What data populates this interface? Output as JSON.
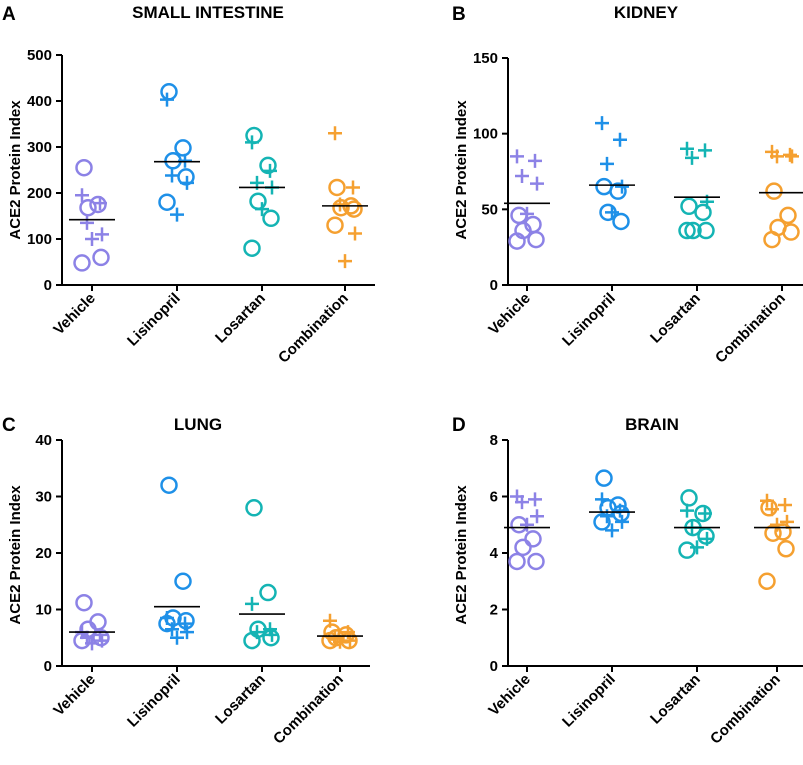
{
  "figure": {
    "panels": [
      {
        "letter": "A",
        "title": "SMALL INTESTINE",
        "ylabel": "ACE2 Protein Index",
        "yticks": [
          "0",
          "100",
          "200",
          "300",
          "400",
          "500"
        ]
      },
      {
        "letter": "B",
        "title": "KIDNEY",
        "ylabel": "ACE2 Protein Index",
        "yticks": [
          "0",
          "50",
          "100",
          "150"
        ]
      },
      {
        "letter": "C",
        "title": "LUNG",
        "ylabel": "ACE2 Protein Index",
        "yticks": [
          "0",
          "10",
          "20",
          "30",
          "40"
        ]
      },
      {
        "letter": "D",
        "title": "BRAIN",
        "ylabel": "ACE2 Protein Index",
        "yticks": [
          "0",
          "2",
          "4",
          "6",
          "8"
        ]
      }
    ],
    "categories": [
      "Vehicle",
      "Lisinopril",
      "Losartan",
      "Combination"
    ]
  },
  "chart_data": [
    {
      "type": "scatter",
      "title": "SMALL INTESTINE",
      "ylabel": "ACE2 Protein Index",
      "ylim": [
        0,
        500
      ],
      "categories": [
        "Vehicle",
        "Lisinopril",
        "Losartan",
        "Combination"
      ],
      "colors": [
        "#8c82e6",
        "#1e90e8",
        "#14b4b4",
        "#f5a030"
      ],
      "means": [
        142,
        268,
        212,
        172
      ],
      "groups": [
        {
          "circles": [
            255,
            175,
            168,
            60,
            48
          ],
          "plus": [
            195,
            178,
            135,
            110,
            100
          ]
        },
        {
          "circles": [
            420,
            298,
            270,
            235,
            180
          ],
          "plus": [
            403,
            270,
            238,
            222,
            153
          ]
        },
        {
          "circles": [
            325,
            260,
            182,
            145,
            80
          ],
          "plus": [
            310,
            248,
            222,
            212,
            165
          ]
        },
        {
          "circles": [
            212,
            172,
            168,
            165,
            130
          ],
          "plus": [
            330,
            212,
            175,
            112,
            52
          ]
        }
      ]
    },
    {
      "type": "scatter",
      "title": "KIDNEY",
      "ylabel": "ACE2 Protein Index",
      "ylim": [
        0,
        150
      ],
      "categories": [
        "Vehicle",
        "Lisinopril",
        "Losartan",
        "Combination"
      ],
      "colors": [
        "#8c82e6",
        "#1e90e8",
        "#14b4b4",
        "#f5a030"
      ],
      "means": [
        54,
        66,
        58,
        61
      ],
      "groups": [
        {
          "circles": [
            46,
            40,
            36,
            30,
            29
          ],
          "plus": [
            85,
            82,
            72,
            67,
            47
          ]
        },
        {
          "circles": [
            65,
            62,
            48,
            42
          ],
          "plus": [
            107,
            96,
            80,
            65,
            48
          ]
        },
        {
          "circles": [
            52,
            48,
            36,
            36,
            36
          ],
          "plus": [
            90,
            89,
            84,
            55
          ]
        },
        {
          "circles": [
            62,
            46,
            38,
            35,
            30
          ],
          "plus": [
            88,
            86,
            85,
            85
          ]
        }
      ]
    },
    {
      "type": "scatter",
      "title": "LUNG",
      "ylabel": "ACE2 Protein Index",
      "ylim": [
        0,
        40
      ],
      "categories": [
        "Vehicle",
        "Lisinopril",
        "Losartan",
        "Combination"
      ],
      "colors": [
        "#8c82e6",
        "#1e90e8",
        "#14b4b4",
        "#f5a030"
      ],
      "means": [
        6,
        10.5,
        9.2,
        5.3
      ],
      "groups": [
        {
          "circles": [
            11.2,
            7.8,
            6.5,
            5,
            4.5
          ],
          "plus": [
            6,
            5.5,
            5,
            4.5,
            4
          ]
        },
        {
          "circles": [
            32,
            15,
            8.5,
            8,
            7.5
          ],
          "plus": [
            8.5,
            7.5,
            6.5,
            6,
            5
          ]
        },
        {
          "circles": [
            28,
            13,
            6.5,
            5,
            4.5
          ],
          "plus": [
            11,
            6.5,
            6,
            5.5
          ]
        },
        {
          "circles": [
            6,
            5.5,
            5,
            4.5,
            4.5
          ],
          "plus": [
            8,
            6,
            5,
            4.5,
            4.3
          ]
        }
      ]
    },
    {
      "type": "scatter",
      "title": "BRAIN",
      "ylabel": "ACE2 Protein Index",
      "ylim": [
        0,
        8
      ],
      "categories": [
        "Vehicle",
        "Lisinopril",
        "Losartan",
        "Combination"
      ],
      "colors": [
        "#8c82e6",
        "#1e90e8",
        "#14b4b4",
        "#f5a030"
      ],
      "means": [
        4.9,
        5.45,
        4.9,
        4.9
      ],
      "groups": [
        {
          "circles": [
            5.0,
            4.5,
            4.2,
            3.7,
            3.7
          ],
          "plus": [
            6.0,
            5.9,
            5.8,
            5.3,
            5.0
          ]
        },
        {
          "circles": [
            6.65,
            5.7,
            5.6,
            5.4,
            5.1
          ],
          "plus": [
            5.9,
            5.5,
            5.3,
            5.1,
            4.8
          ]
        },
        {
          "circles": [
            5.95,
            5.4,
            4.9,
            4.6,
            4.1
          ],
          "plus": [
            5.5,
            5.4,
            4.9,
            4.5,
            4.2
          ]
        },
        {
          "circles": [
            5.6,
            4.75,
            4.7,
            4.15,
            3.0
          ],
          "plus": [
            5.85,
            5.7,
            5.55,
            5.1,
            5.0
          ]
        }
      ]
    }
  ]
}
